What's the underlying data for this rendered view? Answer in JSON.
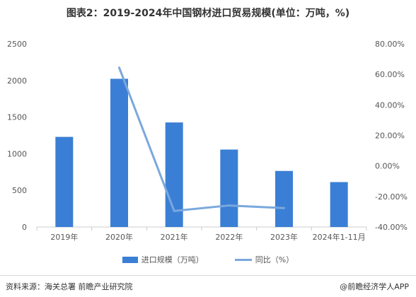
{
  "title": "图表2：2019-2024年中国钢材进口贸易规模(单位：万吨，%)",
  "colors": {
    "bar": "#3a7fd5",
    "line": "#7aa8dd",
    "axis": "#cccccc",
    "text": "#555555"
  },
  "chart_data": {
    "type": "bar",
    "categories": [
      "2019年",
      "2020年",
      "2021年",
      "2022年",
      "2023年",
      "2024年1-11月"
    ],
    "series": [
      {
        "name": "进口规模（万吨）",
        "type": "bar",
        "axis": "left",
        "values": [
          1230,
          2023,
          1427,
          1057,
          765,
          613
        ]
      },
      {
        "name": "同比（%）",
        "type": "line",
        "axis": "right",
        "values": [
          null,
          64.4,
          -29.5,
          -25.9,
          -27.6,
          null
        ]
      }
    ],
    "y_left": {
      "min": 0,
      "max": 2500,
      "ticks": [
        0,
        500,
        1000,
        1500,
        2000,
        2500
      ],
      "tick_labels": [
        "0",
        "500",
        "1000",
        "1500",
        "2000",
        "2500"
      ]
    },
    "y_right": {
      "min": -40,
      "max": 80,
      "ticks": [
        -40,
        -20,
        0,
        20,
        40,
        60,
        80
      ],
      "tick_labels": [
        "-40.00%",
        "-20.00%",
        "0.00%",
        "20.00%",
        "40.00%",
        "60.00%",
        "80.00%"
      ]
    },
    "grid": false,
    "legend_position": "bottom"
  },
  "legend": {
    "bar_label": "进口规模（万吨）",
    "line_label": "同比（%）"
  },
  "footer": {
    "source": "资料来源：海关总署 前瞻产业研究院",
    "credit": "@前瞻经济学人APP"
  }
}
